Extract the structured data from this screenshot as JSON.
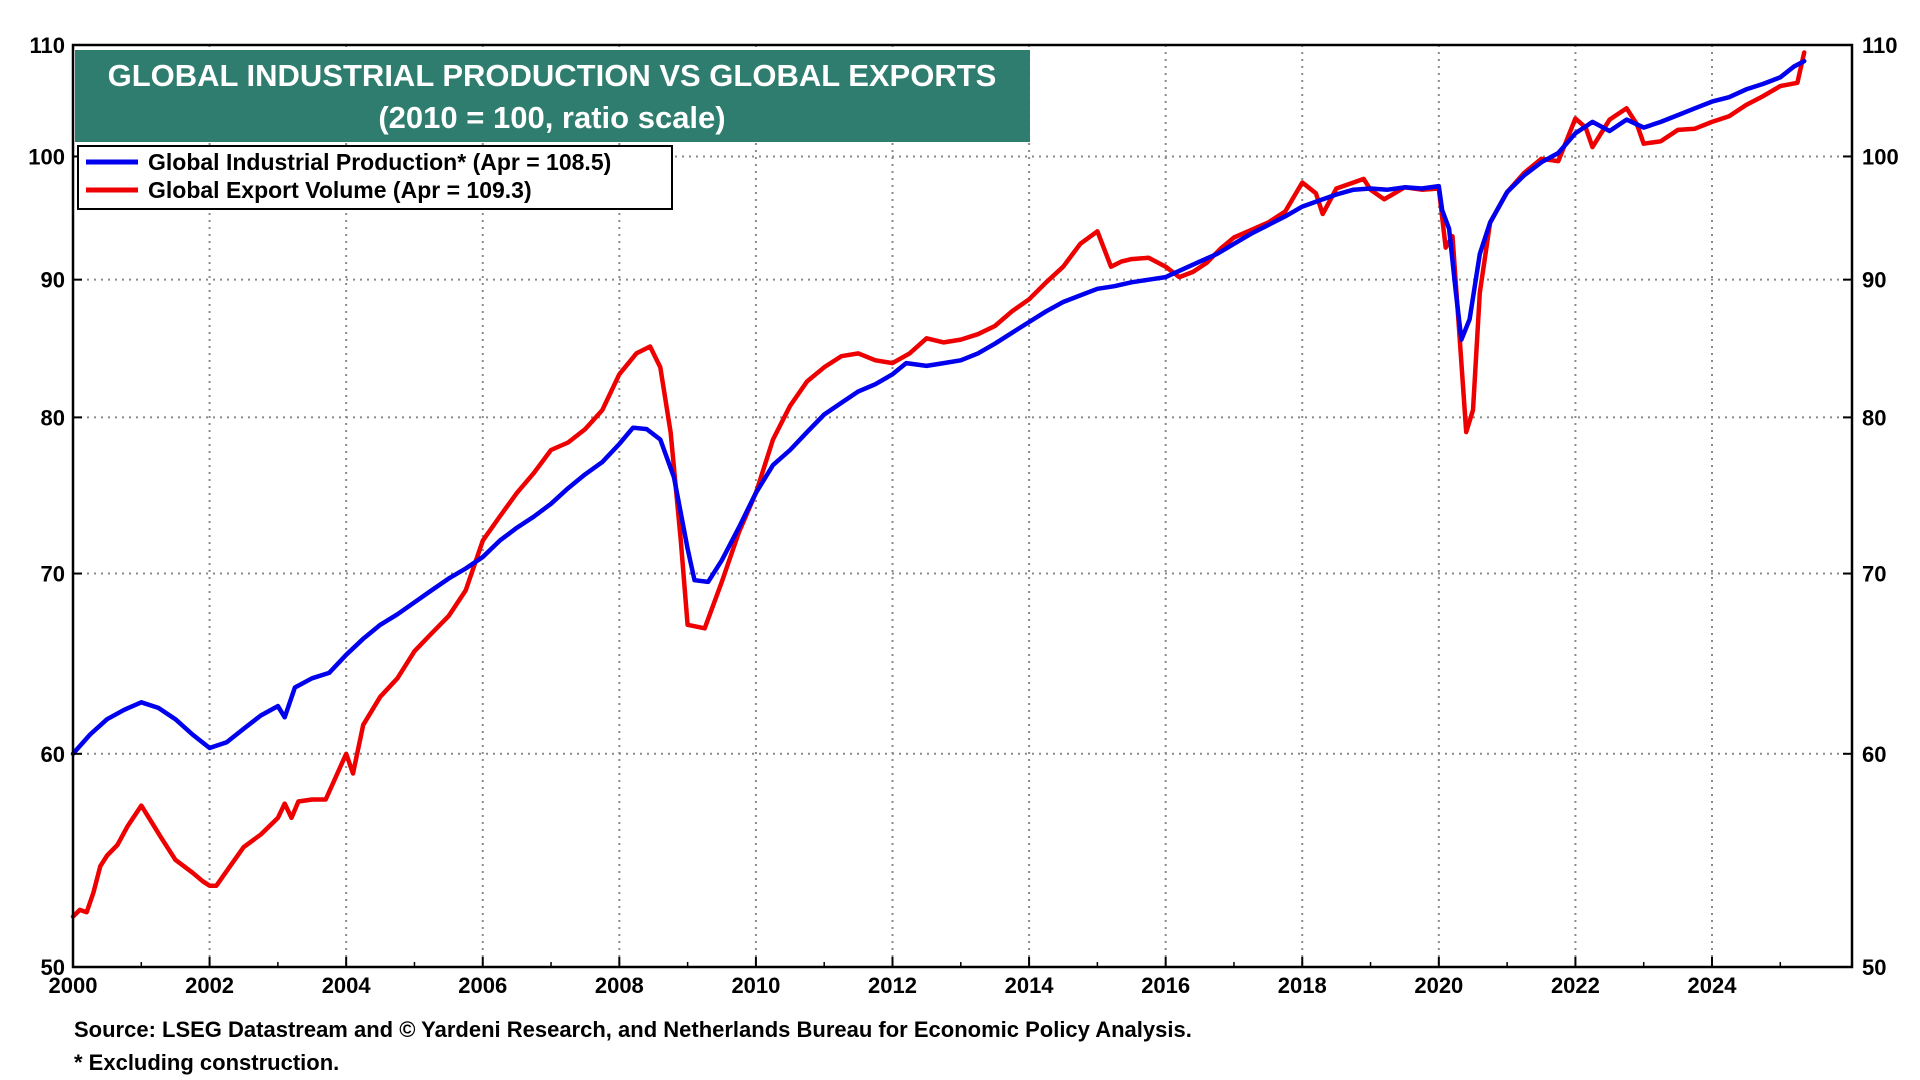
{
  "chart_data": {
    "type": "line",
    "title": "GLOBAL INDUSTRIAL PRODUCTION VS GLOBAL EXPORTS",
    "subtitle": "(2010 = 100, ratio scale)",
    "xlabel": "",
    "ylabel": "",
    "xlim": [
      2000,
      2026.05
    ],
    "ylim": [
      50,
      110
    ],
    "y_scale": "log",
    "y_ticks": [
      50,
      60,
      70,
      80,
      90,
      100,
      110
    ],
    "x_ticks": [
      2000,
      2002,
      2004,
      2006,
      2008,
      2010,
      2012,
      2014,
      2016,
      2018,
      2020,
      2022,
      2024
    ],
    "grid": true,
    "legend_position": "top-left",
    "colors": {
      "title_bg": "#2e7d6e",
      "ip": "#0000ee",
      "exports": "#ee0000"
    },
    "series": [
      {
        "name": "Global Industrial Production* (Apr = 108.5)",
        "color": "#0000ee",
        "points": [
          [
            2000.0,
            60.0
          ],
          [
            2000.25,
            61.0
          ],
          [
            2000.5,
            61.8
          ],
          [
            2000.75,
            62.3
          ],
          [
            2001.0,
            62.7
          ],
          [
            2001.25,
            62.4
          ],
          [
            2001.5,
            61.8
          ],
          [
            2001.75,
            61.0
          ],
          [
            2002.0,
            60.3
          ],
          [
            2002.25,
            60.6
          ],
          [
            2002.5,
            61.3
          ],
          [
            2002.75,
            62.0
          ],
          [
            2003.0,
            62.5
          ],
          [
            2003.1,
            61.9
          ],
          [
            2003.25,
            63.5
          ],
          [
            2003.5,
            64.0
          ],
          [
            2003.75,
            64.3
          ],
          [
            2004.0,
            65.3
          ],
          [
            2004.25,
            66.2
          ],
          [
            2004.5,
            67.0
          ],
          [
            2004.75,
            67.6
          ],
          [
            2005.0,
            68.3
          ],
          [
            2005.25,
            69.0
          ],
          [
            2005.5,
            69.7
          ],
          [
            2005.75,
            70.3
          ],
          [
            2006.0,
            71.0
          ],
          [
            2006.25,
            72.0
          ],
          [
            2006.5,
            72.8
          ],
          [
            2006.75,
            73.5
          ],
          [
            2007.0,
            74.3
          ],
          [
            2007.25,
            75.3
          ],
          [
            2007.5,
            76.2
          ],
          [
            2007.75,
            77.0
          ],
          [
            2008.0,
            78.2
          ],
          [
            2008.2,
            79.3
          ],
          [
            2008.4,
            79.2
          ],
          [
            2008.6,
            78.5
          ],
          [
            2008.8,
            76.0
          ],
          [
            2009.0,
            71.5
          ],
          [
            2009.1,
            69.6
          ],
          [
            2009.3,
            69.5
          ],
          [
            2009.5,
            70.8
          ],
          [
            2009.75,
            72.8
          ],
          [
            2010.0,
            75.0
          ],
          [
            2010.25,
            76.8
          ],
          [
            2010.5,
            77.8
          ],
          [
            2010.75,
            79.0
          ],
          [
            2011.0,
            80.2
          ],
          [
            2011.25,
            81.0
          ],
          [
            2011.5,
            81.8
          ],
          [
            2011.75,
            82.3
          ],
          [
            2012.0,
            83.0
          ],
          [
            2012.2,
            83.8
          ],
          [
            2012.5,
            83.6
          ],
          [
            2012.75,
            83.8
          ],
          [
            2013.0,
            84.0
          ],
          [
            2013.25,
            84.5
          ],
          [
            2013.5,
            85.2
          ],
          [
            2013.75,
            86.0
          ],
          [
            2014.0,
            86.8
          ],
          [
            2014.25,
            87.6
          ],
          [
            2014.5,
            88.3
          ],
          [
            2014.75,
            88.8
          ],
          [
            2015.0,
            89.3
          ],
          [
            2015.25,
            89.5
          ],
          [
            2015.5,
            89.8
          ],
          [
            2015.75,
            90.0
          ],
          [
            2016.0,
            90.2
          ],
          [
            2016.25,
            90.8
          ],
          [
            2016.5,
            91.4
          ],
          [
            2016.75,
            92.0
          ],
          [
            2017.0,
            92.8
          ],
          [
            2017.25,
            93.6
          ],
          [
            2017.5,
            94.3
          ],
          [
            2017.75,
            95.0
          ],
          [
            2018.0,
            95.8
          ],
          [
            2018.25,
            96.3
          ],
          [
            2018.5,
            96.8
          ],
          [
            2018.75,
            97.2
          ],
          [
            2019.0,
            97.3
          ],
          [
            2019.25,
            97.2
          ],
          [
            2019.5,
            97.4
          ],
          [
            2019.75,
            97.3
          ],
          [
            2020.0,
            97.5
          ],
          [
            2020.05,
            95.5
          ],
          [
            2020.15,
            94.0
          ],
          [
            2020.25,
            89.0
          ],
          [
            2020.33,
            85.5
          ],
          [
            2020.45,
            87.0
          ],
          [
            2020.6,
            92.0
          ],
          [
            2020.75,
            94.5
          ],
          [
            2021.0,
            97.0
          ],
          [
            2021.25,
            98.4
          ],
          [
            2021.5,
            99.5
          ],
          [
            2021.75,
            100.3
          ],
          [
            2022.0,
            102.0
          ],
          [
            2022.25,
            103.0
          ],
          [
            2022.5,
            102.2
          ],
          [
            2022.75,
            103.2
          ],
          [
            2023.0,
            102.5
          ],
          [
            2023.25,
            103.0
          ],
          [
            2023.5,
            103.6
          ],
          [
            2023.75,
            104.2
          ],
          [
            2024.0,
            104.8
          ],
          [
            2024.25,
            105.2
          ],
          [
            2024.5,
            105.9
          ],
          [
            2024.75,
            106.4
          ],
          [
            2025.0,
            107.0
          ],
          [
            2025.2,
            108.0
          ],
          [
            2025.35,
            108.5
          ]
        ]
      },
      {
        "name": "Global Export Volume (Apr = 109.3)",
        "color": "#ee0000",
        "points": [
          [
            2000.0,
            52.2
          ],
          [
            2000.1,
            52.5
          ],
          [
            2000.2,
            52.4
          ],
          [
            2000.3,
            53.3
          ],
          [
            2000.4,
            54.5
          ],
          [
            2000.5,
            55.0
          ],
          [
            2000.65,
            55.5
          ],
          [
            2000.8,
            56.4
          ],
          [
            2001.0,
            57.4
          ],
          [
            2001.15,
            56.6
          ],
          [
            2001.3,
            55.8
          ],
          [
            2001.5,
            54.8
          ],
          [
            2001.75,
            54.2
          ],
          [
            2001.9,
            53.8
          ],
          [
            2002.0,
            53.6
          ],
          [
            2002.1,
            53.6
          ],
          [
            2002.3,
            54.5
          ],
          [
            2002.5,
            55.4
          ],
          [
            2002.75,
            56.0
          ],
          [
            2003.0,
            56.8
          ],
          [
            2003.1,
            57.5
          ],
          [
            2003.2,
            56.8
          ],
          [
            2003.3,
            57.6
          ],
          [
            2003.5,
            57.7
          ],
          [
            2003.7,
            57.7
          ],
          [
            2004.0,
            60.0
          ],
          [
            2004.1,
            59.0
          ],
          [
            2004.25,
            61.5
          ],
          [
            2004.5,
            63.0
          ],
          [
            2004.75,
            64.0
          ],
          [
            2005.0,
            65.5
          ],
          [
            2005.25,
            66.5
          ],
          [
            2005.5,
            67.5
          ],
          [
            2005.75,
            69.0
          ],
          [
            2006.0,
            72.0
          ],
          [
            2006.25,
            73.5
          ],
          [
            2006.5,
            75.0
          ],
          [
            2006.75,
            76.3
          ],
          [
            2007.0,
            77.8
          ],
          [
            2007.25,
            78.3
          ],
          [
            2007.5,
            79.2
          ],
          [
            2007.75,
            80.5
          ],
          [
            2008.0,
            83.0
          ],
          [
            2008.25,
            84.5
          ],
          [
            2008.45,
            85.0
          ],
          [
            2008.6,
            83.5
          ],
          [
            2008.75,
            79.0
          ],
          [
            2008.9,
            72.0
          ],
          [
            2009.0,
            67.0
          ],
          [
            2009.25,
            66.8
          ],
          [
            2009.5,
            69.5
          ],
          [
            2009.75,
            72.5
          ],
          [
            2010.0,
            75.0
          ],
          [
            2010.25,
            78.5
          ],
          [
            2010.5,
            80.8
          ],
          [
            2010.75,
            82.5
          ],
          [
            2011.0,
            83.5
          ],
          [
            2011.25,
            84.3
          ],
          [
            2011.5,
            84.5
          ],
          [
            2011.75,
            84.0
          ],
          [
            2012.0,
            83.8
          ],
          [
            2012.25,
            84.5
          ],
          [
            2012.5,
            85.6
          ],
          [
            2012.75,
            85.3
          ],
          [
            2013.0,
            85.5
          ],
          [
            2013.25,
            85.9
          ],
          [
            2013.5,
            86.5
          ],
          [
            2013.75,
            87.6
          ],
          [
            2014.0,
            88.5
          ],
          [
            2014.25,
            89.8
          ],
          [
            2014.5,
            91.0
          ],
          [
            2014.75,
            92.8
          ],
          [
            2015.0,
            93.8
          ],
          [
            2015.2,
            91.0
          ],
          [
            2015.35,
            91.4
          ],
          [
            2015.5,
            91.6
          ],
          [
            2015.75,
            91.7
          ],
          [
            2016.0,
            91.0
          ],
          [
            2016.2,
            90.2
          ],
          [
            2016.4,
            90.6
          ],
          [
            2016.6,
            91.3
          ],
          [
            2016.8,
            92.4
          ],
          [
            2017.0,
            93.3
          ],
          [
            2017.25,
            93.9
          ],
          [
            2017.5,
            94.5
          ],
          [
            2017.75,
            95.4
          ],
          [
            2018.0,
            97.8
          ],
          [
            2018.2,
            96.9
          ],
          [
            2018.3,
            95.2
          ],
          [
            2018.5,
            97.3
          ],
          [
            2018.75,
            97.8
          ],
          [
            2018.9,
            98.1
          ],
          [
            2019.0,
            97.2
          ],
          [
            2019.2,
            96.4
          ],
          [
            2019.5,
            97.4
          ],
          [
            2019.75,
            97.2
          ],
          [
            2020.0,
            97.3
          ],
          [
            2020.1,
            92.5
          ],
          [
            2020.2,
            93.4
          ],
          [
            2020.3,
            86.0
          ],
          [
            2020.4,
            79.0
          ],
          [
            2020.5,
            80.5
          ],
          [
            2020.6,
            89.0
          ],
          [
            2020.75,
            94.5
          ],
          [
            2021.0,
            97.0
          ],
          [
            2021.25,
            98.6
          ],
          [
            2021.5,
            99.8
          ],
          [
            2021.75,
            99.6
          ],
          [
            2022.0,
            103.3
          ],
          [
            2022.15,
            102.5
          ],
          [
            2022.25,
            100.8
          ],
          [
            2022.5,
            103.2
          ],
          [
            2022.75,
            104.2
          ],
          [
            2022.9,
            102.8
          ],
          [
            2023.0,
            101.1
          ],
          [
            2023.25,
            101.3
          ],
          [
            2023.5,
            102.3
          ],
          [
            2023.75,
            102.4
          ],
          [
            2024.0,
            103.0
          ],
          [
            2024.25,
            103.5
          ],
          [
            2024.5,
            104.5
          ],
          [
            2024.75,
            105.3
          ],
          [
            2025.0,
            106.2
          ],
          [
            2025.25,
            106.5
          ],
          [
            2025.35,
            109.3
          ]
        ]
      }
    ],
    "source": "Source: LSEG Datastream and © Yardeni Research, and Netherlands Bureau for Economic Policy Analysis.",
    "note": "* Excluding construction."
  }
}
